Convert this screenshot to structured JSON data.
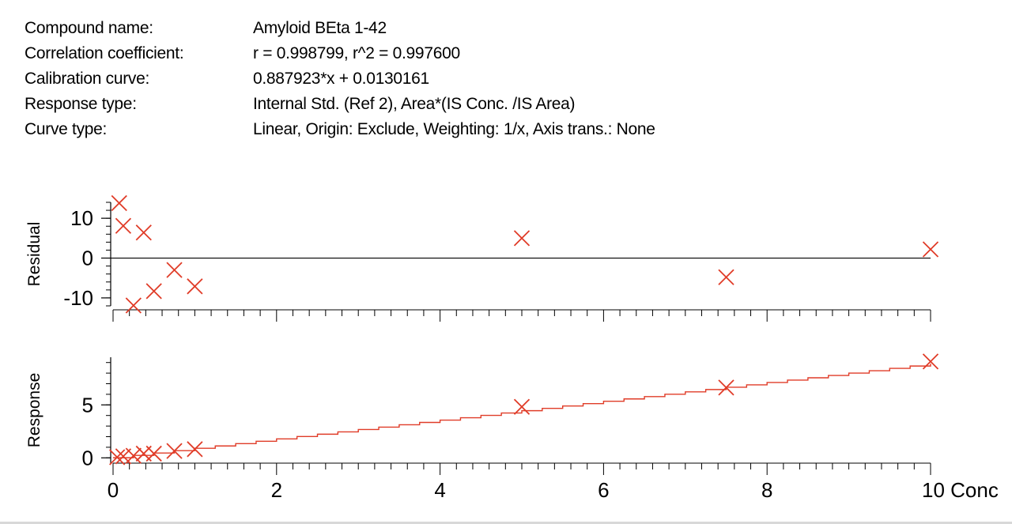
{
  "info": [
    {
      "label": "Compound name:",
      "value": "Amyloid BEta 1-42"
    },
    {
      "label": "Correlation coefficient:",
      "value": "r = 0.998799, r^2 = 0.997600"
    },
    {
      "label": "Calibration curve:",
      "value": "0.887923*x + 0.0130161"
    },
    {
      "label": "Response type:",
      "value": "Internal Std. (Ref 2), Area*(IS Conc. /IS Area)"
    },
    {
      "label": "Curve type:",
      "value": "Linear, Origin: Exclude, Weighting: 1/x, Axis trans.: None"
    }
  ],
  "colors": {
    "marker": "#e03c28",
    "fit": "#e03c28",
    "axis": "#000000"
  },
  "chart_data": [
    {
      "type": "scatter",
      "ylabel": "Residual",
      "xlim": [
        0,
        10
      ],
      "ylim": [
        -12,
        14
      ],
      "yticks": [
        -10,
        0,
        10
      ],
      "zero_line": true,
      "points": [
        {
          "x": 0.075,
          "y": 13.8
        },
        {
          "x": 0.125,
          "y": 8.1
        },
        {
          "x": 0.25,
          "y": -11.9
        },
        {
          "x": 0.375,
          "y": 6.4
        },
        {
          "x": 0.5,
          "y": -8.3
        },
        {
          "x": 0.75,
          "y": -3.0
        },
        {
          "x": 1.0,
          "y": -7.1
        },
        {
          "x": 5.0,
          "y": 5.0
        },
        {
          "x": 7.5,
          "y": -4.8
        },
        {
          "x": 10.0,
          "y": 2.2
        }
      ]
    },
    {
      "type": "scatter",
      "ylabel": "Response",
      "xlabel": "Conc",
      "xlim": [
        0,
        10
      ],
      "ylim": [
        -0.5,
        9.5
      ],
      "xticks": [
        0,
        2,
        4,
        6,
        8,
        10
      ],
      "yticks": [
        0,
        5
      ],
      "fit": {
        "slope": 0.887923,
        "intercept": 0.0130161
      },
      "points": [
        {
          "x": 0.05,
          "y": 0.06
        },
        {
          "x": 0.125,
          "y": 0.14
        },
        {
          "x": 0.25,
          "y": 0.2
        },
        {
          "x": 0.375,
          "y": 0.4
        },
        {
          "x": 0.5,
          "y": 0.4
        },
        {
          "x": 0.75,
          "y": 0.65
        },
        {
          "x": 1.0,
          "y": 0.82
        },
        {
          "x": 5.0,
          "y": 4.82
        },
        {
          "x": 7.5,
          "y": 6.64
        },
        {
          "x": 10.0,
          "y": 9.1
        }
      ]
    }
  ]
}
